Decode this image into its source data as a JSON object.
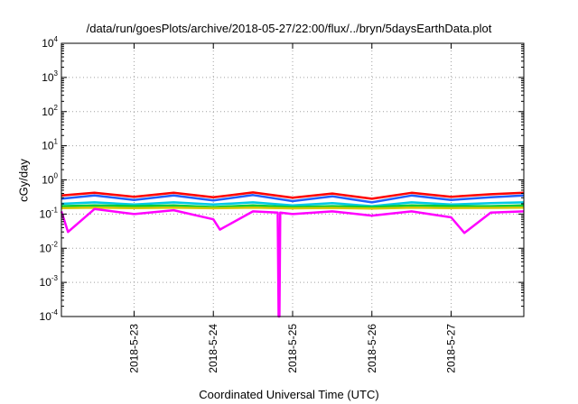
{
  "chart_data": {
    "type": "line",
    "title": "/data/run/goesPlots/archive/2018-05-27/22:00/flux/../bryn/5daysEarthData.plot",
    "xlabel": "Coordinated Universal Time (UTC)",
    "ylabel": "cGy/day",
    "yscale": "log",
    "ylim": [
      0.0001,
      10000
    ],
    "y_ticks": [
      {
        "base": "10",
        "exp": "-4"
      },
      {
        "base": "10",
        "exp": "-3"
      },
      {
        "base": "10",
        "exp": "-2"
      },
      {
        "base": "10",
        "exp": "-1"
      },
      {
        "base": "10",
        "exp": "0"
      },
      {
        "base": "10",
        "exp": "1"
      },
      {
        "base": "10",
        "exp": "2"
      },
      {
        "base": "10",
        "exp": "3"
      },
      {
        "base": "10",
        "exp": "4"
      }
    ],
    "xlim": [
      "2018-05-22 02:00",
      "2018-05-27 22:00"
    ],
    "x_ticks": [
      "2018-5-23",
      "2018-5-24",
      "2018-5-25",
      "2018-5-26",
      "2018-5-27"
    ],
    "grid": true,
    "legend": "none",
    "colors": {
      "red": "#ff0000",
      "blue": "#2060ff",
      "cyan": "#00c8e6",
      "green": "#00cc33",
      "yellow": "#d4c800",
      "magenta": "#ff00ff",
      "grid": "#a0a0a0"
    },
    "series": [
      {
        "color": "red",
        "x": [
          "2018-05-22 02:00",
          "2018-05-22 12:00",
          "2018-05-23 00:00",
          "2018-05-23 12:00",
          "2018-05-24 00:00",
          "2018-05-24 12:00",
          "2018-05-25 00:00",
          "2018-05-25 12:00",
          "2018-05-26 00:00",
          "2018-05-26 12:00",
          "2018-05-27 00:00",
          "2018-05-27 12:00",
          "2018-05-27 22:00"
        ],
        "values": [
          0.35,
          0.42,
          0.32,
          0.42,
          0.31,
          0.43,
          0.3,
          0.4,
          0.28,
          0.42,
          0.32,
          0.38,
          0.42
        ]
      },
      {
        "color": "blue",
        "x": [
          "2018-05-22 02:00",
          "2018-05-22 12:00",
          "2018-05-23 00:00",
          "2018-05-23 12:00",
          "2018-05-24 00:00",
          "2018-05-24 12:00",
          "2018-05-25 00:00",
          "2018-05-25 12:00",
          "2018-05-26 00:00",
          "2018-05-26 12:00",
          "2018-05-27 00:00",
          "2018-05-27 12:00",
          "2018-05-27 22:00"
        ],
        "values": [
          0.28,
          0.35,
          0.26,
          0.35,
          0.25,
          0.36,
          0.24,
          0.33,
          0.22,
          0.35,
          0.26,
          0.31,
          0.35
        ]
      },
      {
        "color": "cyan",
        "x": [
          "2018-05-22 02:00",
          "2018-05-22 12:00",
          "2018-05-23 00:00",
          "2018-05-23 12:00",
          "2018-05-24 00:00",
          "2018-05-24 12:00",
          "2018-05-25 00:00",
          "2018-05-25 12:00",
          "2018-05-26 00:00",
          "2018-05-26 12:00",
          "2018-05-27 00:00",
          "2018-05-27 12:00",
          "2018-05-27 22:00"
        ],
        "values": [
          0.2,
          0.22,
          0.19,
          0.22,
          0.19,
          0.22,
          0.18,
          0.21,
          0.17,
          0.22,
          0.19,
          0.21,
          0.22
        ]
      },
      {
        "color": "green",
        "x": [
          "2018-05-22 02:00",
          "2018-05-22 12:00",
          "2018-05-23 00:00",
          "2018-05-23 12:00",
          "2018-05-24 00:00",
          "2018-05-24 12:00",
          "2018-05-25 00:00",
          "2018-05-25 12:00",
          "2018-05-26 00:00",
          "2018-05-26 12:00",
          "2018-05-27 00:00",
          "2018-05-27 12:00",
          "2018-05-27 22:00"
        ],
        "values": [
          0.17,
          0.18,
          0.17,
          0.18,
          0.16,
          0.18,
          0.16,
          0.17,
          0.16,
          0.18,
          0.17,
          0.17,
          0.18
        ]
      },
      {
        "color": "yellow",
        "x": [
          "2018-05-22 02:00",
          "2018-05-22 12:00",
          "2018-05-23 00:00",
          "2018-05-23 12:00",
          "2018-05-24 00:00",
          "2018-05-24 12:00",
          "2018-05-25 00:00",
          "2018-05-25 12:00",
          "2018-05-26 00:00",
          "2018-05-26 12:00",
          "2018-05-27 00:00",
          "2018-05-27 12:00",
          "2018-05-27 22:00"
        ],
        "values": [
          0.15,
          0.155,
          0.15,
          0.155,
          0.148,
          0.155,
          0.147,
          0.152,
          0.146,
          0.155,
          0.15,
          0.152,
          0.155
        ]
      },
      {
        "color": "magenta",
        "x": [
          "2018-05-22 02:00",
          "2018-05-22 04:00",
          "2018-05-22 12:00",
          "2018-05-23 00:00",
          "2018-05-23 12:00",
          "2018-05-24 00:00",
          "2018-05-24 02:00",
          "2018-05-24 12:00",
          "2018-05-24 19:30",
          "2018-05-24 19:45",
          "2018-05-24 20:00",
          "2018-05-24 20:15",
          "2018-05-25 00:00",
          "2018-05-25 12:00",
          "2018-05-26 00:00",
          "2018-05-26 12:00",
          "2018-05-27 00:00",
          "2018-05-27 04:00",
          "2018-05-27 12:00",
          "2018-05-27 22:00"
        ],
        "values": [
          0.12,
          0.03,
          0.14,
          0.1,
          0.13,
          0.07,
          0.035,
          0.12,
          0.11,
          0.0001,
          0.0001,
          0.11,
          0.1,
          0.12,
          0.09,
          0.12,
          0.08,
          0.028,
          0.11,
          0.12
        ]
      }
    ]
  }
}
